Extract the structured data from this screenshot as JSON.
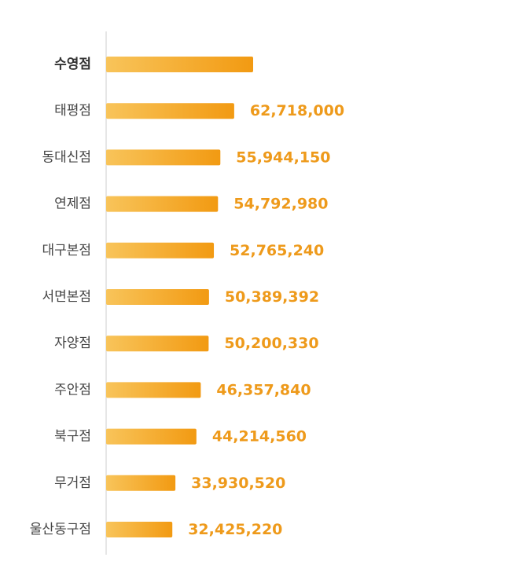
{
  "chart_data": {
    "type": "bar",
    "orientation": "horizontal",
    "categories": [
      "수영점",
      "태평점",
      "동대신점",
      "연제점",
      "대구본점",
      "서면본점",
      "자양점",
      "주안점",
      "북구점",
      "무거점",
      "울산동구점"
    ],
    "values": [
      72000000,
      62718000,
      55944150,
      54792980,
      52765240,
      50389392,
      50200330,
      46357840,
      44214560,
      33930520,
      32425220
    ],
    "value_labels": [
      "",
      "62,718,000",
      "55,944,150",
      "54,792,980",
      "52,765,240",
      "50,389,392",
      "50,200,330",
      "46,357,840",
      "44,214,560",
      "33,930,520",
      "32,425,220"
    ],
    "grid": false,
    "legend": "none"
  },
  "colors": {
    "bar_start": "#F8C45A",
    "bar_end": "#F29A12",
    "value_text": "#EE9A1B",
    "axis_line": "#DDDDDD"
  }
}
